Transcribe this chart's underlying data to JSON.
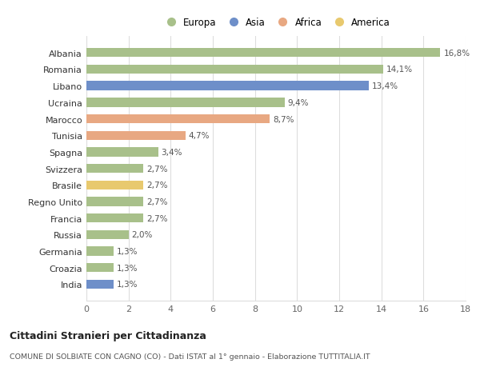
{
  "countries": [
    "Albania",
    "Romania",
    "Libano",
    "Ucraina",
    "Marocco",
    "Tunisia",
    "Spagna",
    "Svizzera",
    "Brasile",
    "Regno Unito",
    "Francia",
    "Russia",
    "Germania",
    "Croazia",
    "India"
  ],
  "values": [
    16.8,
    14.1,
    13.4,
    9.4,
    8.7,
    4.7,
    3.4,
    2.7,
    2.7,
    2.7,
    2.7,
    2.0,
    1.3,
    1.3,
    1.3
  ],
  "labels": [
    "16,8%",
    "14,1%",
    "13,4%",
    "9,4%",
    "8,7%",
    "4,7%",
    "3,4%",
    "2,7%",
    "2,7%",
    "2,7%",
    "2,7%",
    "2,0%",
    "1,3%",
    "1,3%",
    "1,3%"
  ],
  "colors": [
    "#a8c08a",
    "#a8c08a",
    "#6e8fc9",
    "#a8c08a",
    "#e8a882",
    "#e8a882",
    "#a8c08a",
    "#a8c08a",
    "#e8c96e",
    "#a8c08a",
    "#a8c08a",
    "#a8c08a",
    "#a8c08a",
    "#a8c08a",
    "#6e8fc9"
  ],
  "legend_labels": [
    "Europa",
    "Asia",
    "Africa",
    "America"
  ],
  "legend_colors": [
    "#a8c08a",
    "#6e8fc9",
    "#e8a882",
    "#e8c96e"
  ],
  "xlim": [
    0,
    18
  ],
  "xticks": [
    0,
    2,
    4,
    6,
    8,
    10,
    12,
    14,
    16,
    18
  ],
  "title_bold": "Cittadini Stranieri per Cittadinanza",
  "subtitle": "COMUNE DI SOLBIATE CON CAGNO (CO) - Dati ISTAT al 1° gennaio - Elaborazione TUTTITALIA.IT",
  "bg_color": "#ffffff",
  "grid_color": "#dddddd"
}
